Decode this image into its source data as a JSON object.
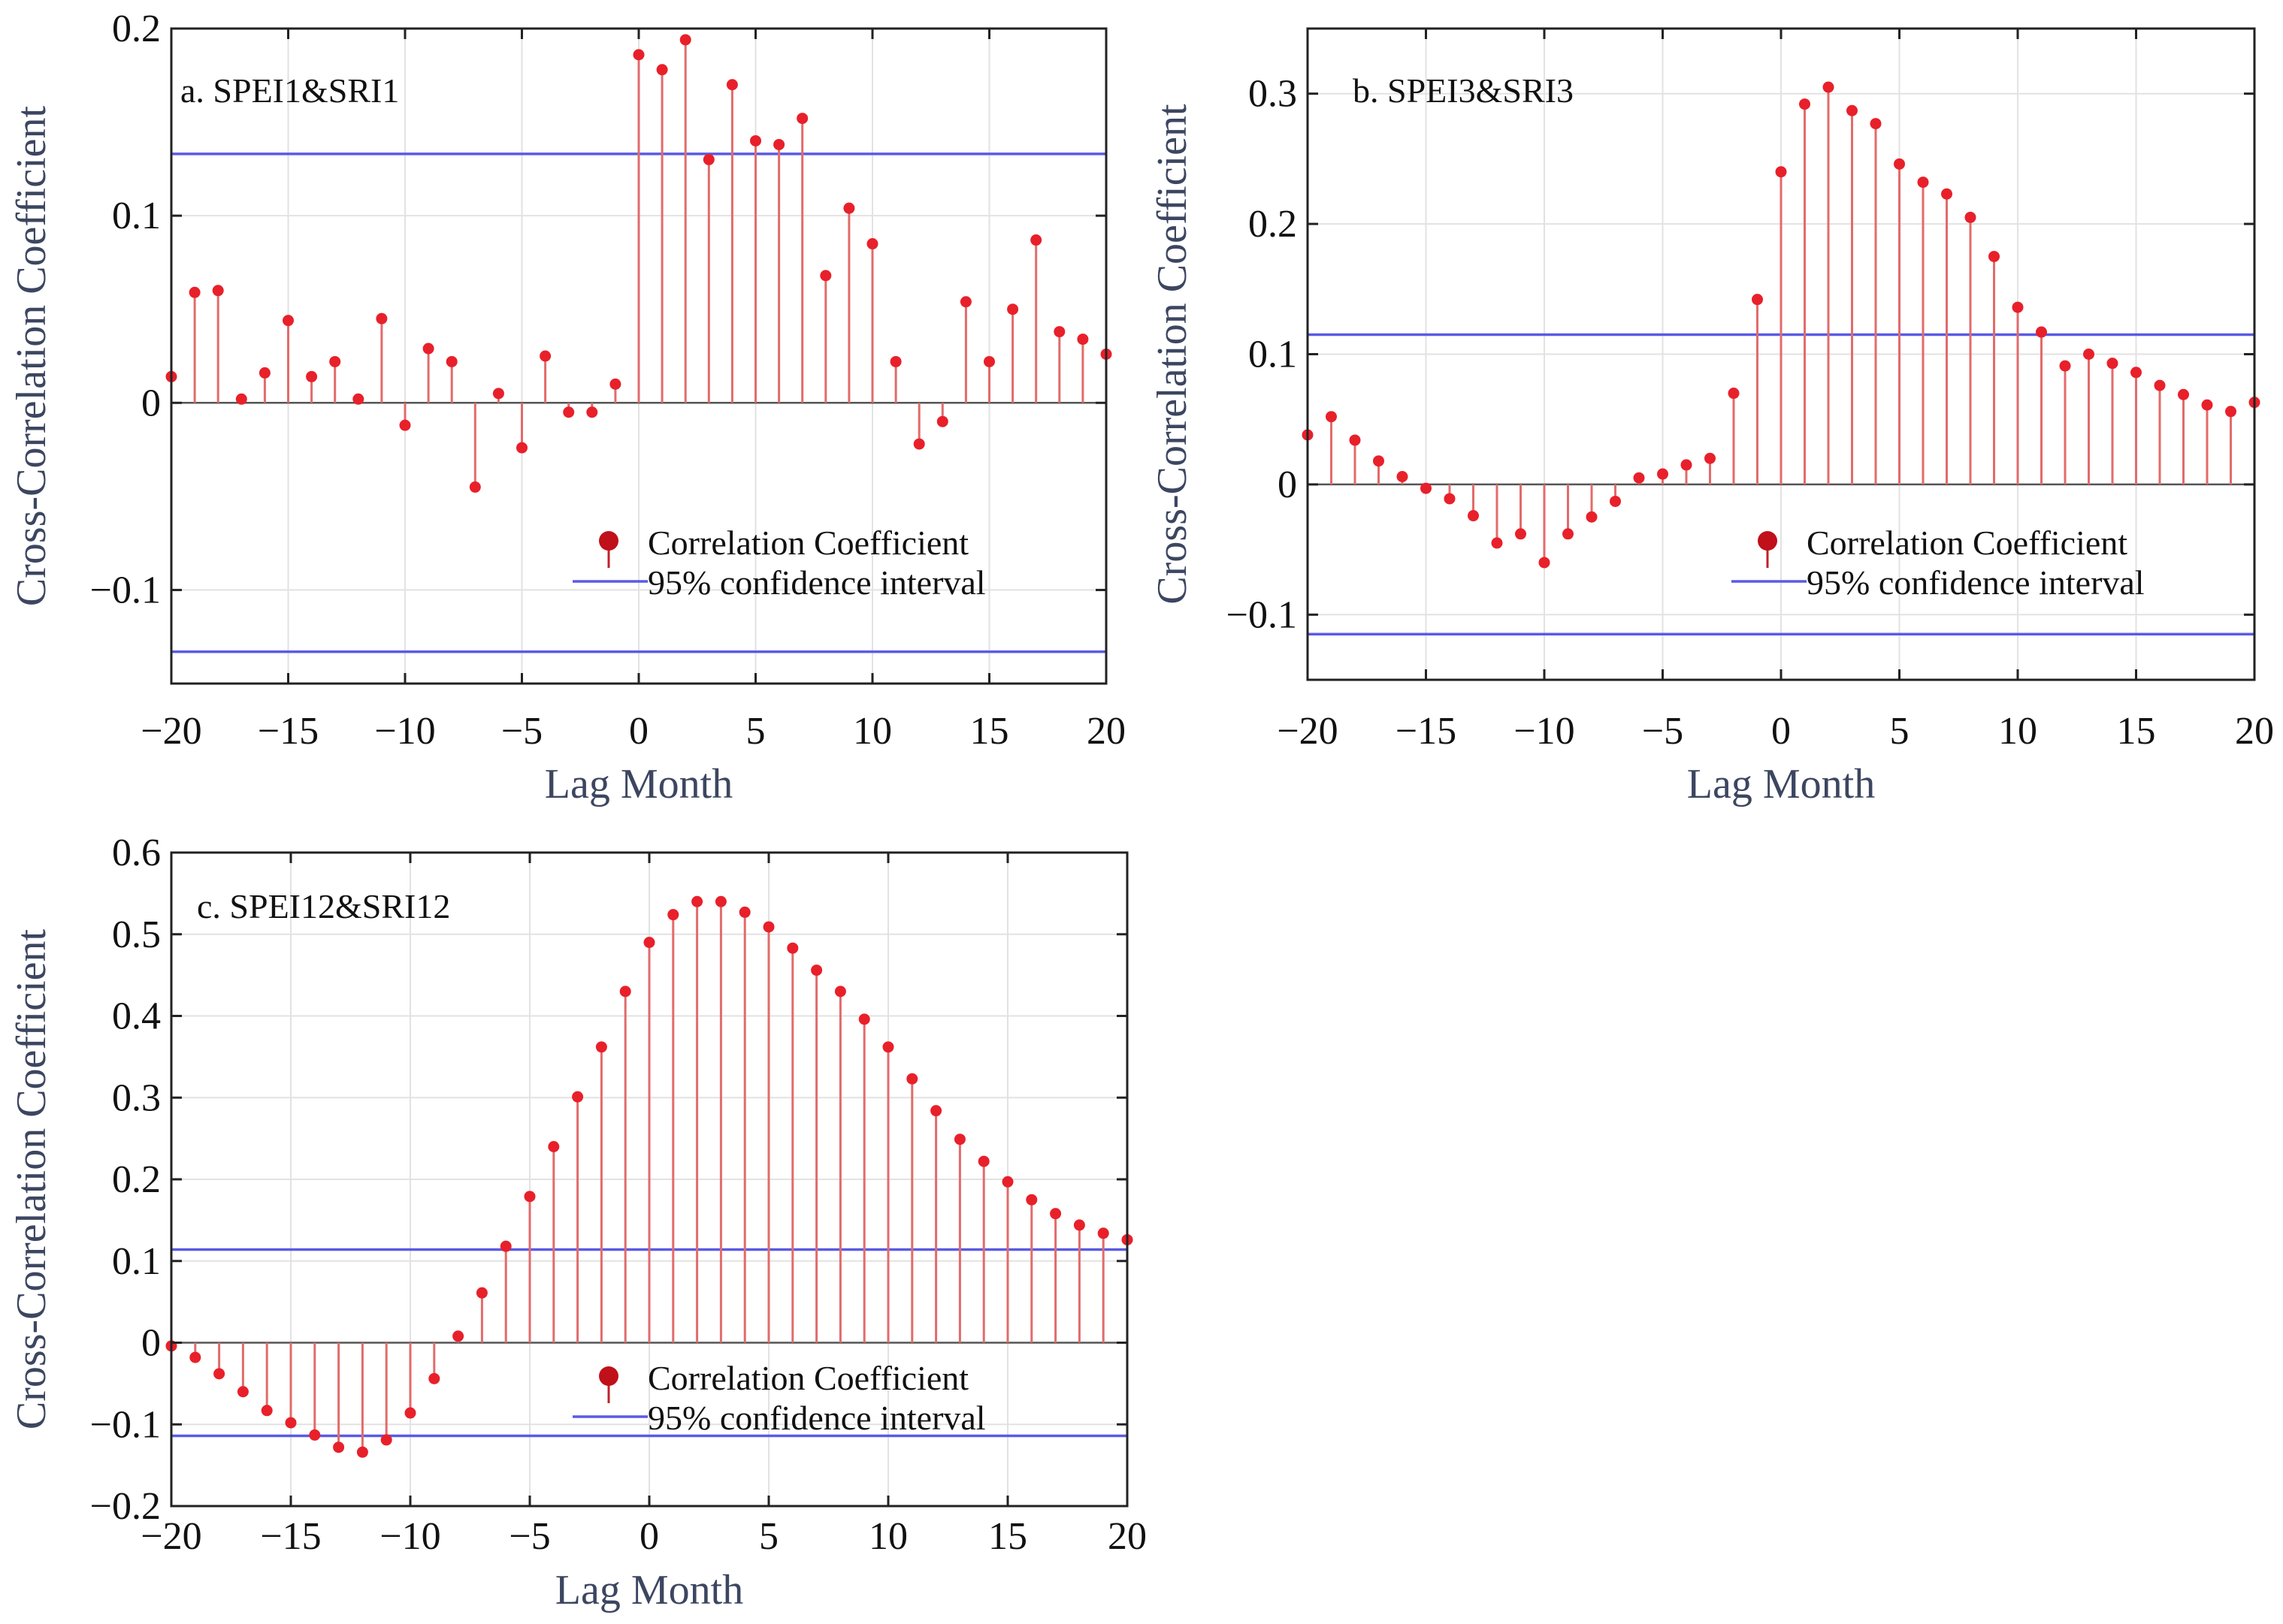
{
  "colors": {
    "stem": "#e26b6b",
    "marker": "#e8202a",
    "confidence": "#5a5ae6",
    "zero_line": "#555555",
    "axis": "#222222",
    "label": "#3c4660",
    "grid": "#e2e2e2"
  },
  "legend": {
    "marker_label": "Correlation Coefficient",
    "line_label": "95% confidence interval"
  },
  "chart_data": [
    {
      "id": "a",
      "type": "stem",
      "title": "a. SPEI1&SRI1",
      "xlabel": "Lag Month",
      "ylabel": "Cross-Correlation Coefficient",
      "xlim": [
        -20,
        20
      ],
      "ylim": [
        -0.15,
        0.2
      ],
      "xticks": [
        -20,
        -15,
        -10,
        -5,
        0,
        5,
        10,
        15,
        20
      ],
      "xtick_labels": [
        "−20",
        "−15",
        "−10",
        "−5",
        "0",
        "5",
        "10",
        "15",
        "20"
      ],
      "yticks": [
        -0.1,
        0,
        0.1,
        0.2
      ],
      "ytick_labels": [
        "−0.1",
        "0",
        "0.1",
        "0.2"
      ],
      "confidence_interval": [
        0.133,
        -0.133
      ],
      "x": [
        -20,
        -19,
        -18,
        -17,
        -16,
        -15,
        -14,
        -13,
        -12,
        -11,
        -10,
        -9,
        -8,
        -7,
        -6,
        -5,
        -4,
        -3,
        -2,
        -1,
        0,
        1,
        2,
        3,
        4,
        5,
        6,
        7,
        8,
        9,
        10,
        11,
        12,
        13,
        14,
        15,
        16,
        17,
        18,
        19,
        20
      ],
      "values": [
        0.014,
        0.059,
        0.06,
        0.002,
        0.016,
        0.044,
        0.014,
        0.022,
        0.002,
        0.045,
        -0.012,
        0.029,
        0.022,
        -0.045,
        0.005,
        -0.024,
        0.025,
        -0.005,
        -0.005,
        0.01,
        0.186,
        0.178,
        0.194,
        0.13,
        0.17,
        0.14,
        0.138,
        0.152,
        0.068,
        0.104,
        0.085,
        0.022,
        -0.022,
        -0.01,
        0.054,
        0.022,
        0.05,
        0.087,
        0.038,
        0.034,
        0.026
      ]
    },
    {
      "id": "b",
      "type": "stem",
      "title": "b. SPEI3&SRI3",
      "xlabel": "Lag Month",
      "ylabel": "Cross-Correlation Coefficient",
      "xlim": [
        -20,
        20
      ],
      "ylim": [
        -0.15,
        0.35
      ],
      "xticks": [
        -20,
        -15,
        -10,
        -5,
        0,
        5,
        10,
        15,
        20
      ],
      "xtick_labels": [
        "−20",
        "−15",
        "−10",
        "−5",
        "0",
        "5",
        "10",
        "15",
        "20"
      ],
      "yticks": [
        -0.1,
        0,
        0.1,
        0.2,
        0.3
      ],
      "ytick_labels": [
        "−0.1",
        "0",
        "0.1",
        "0.2",
        "0.3"
      ],
      "confidence_interval": [
        0.115,
        -0.115
      ],
      "x": [
        -20,
        -19,
        -18,
        -17,
        -16,
        -15,
        -14,
        -13,
        -12,
        -11,
        -10,
        -9,
        -8,
        -7,
        -6,
        -5,
        -4,
        -3,
        -2,
        -1,
        0,
        1,
        2,
        3,
        4,
        5,
        6,
        7,
        8,
        9,
        10,
        11,
        12,
        13,
        14,
        15,
        16,
        17,
        18,
        19,
        20
      ],
      "values": [
        0.038,
        0.052,
        0.034,
        0.018,
        0.006,
        -0.003,
        -0.011,
        -0.024,
        -0.045,
        -0.038,
        -0.06,
        -0.038,
        -0.025,
        -0.013,
        0.005,
        0.008,
        0.015,
        0.02,
        0.07,
        0.142,
        0.24,
        0.292,
        0.305,
        0.287,
        0.277,
        0.246,
        0.232,
        0.223,
        0.205,
        0.175,
        0.136,
        0.117,
        0.091,
        0.1,
        0.093,
        0.086,
        0.076,
        0.069,
        0.061,
        0.056,
        0.063
      ]
    },
    {
      "id": "c",
      "type": "stem",
      "title": "c. SPEI12&SRI12",
      "xlabel": "Lag Month",
      "ylabel": "Cross-Correlation Coefficient",
      "xlim": [
        -20,
        20
      ],
      "ylim": [
        -0.2,
        0.6
      ],
      "xticks": [
        -20,
        -15,
        -10,
        -5,
        0,
        5,
        10,
        15,
        20
      ],
      "xtick_labels": [
        "−20",
        "−15",
        "−10",
        "−5",
        "0",
        "5",
        "10",
        "15",
        "20"
      ],
      "yticks": [
        -0.2,
        -0.1,
        0,
        0.1,
        0.2,
        0.3,
        0.4,
        0.5,
        0.6
      ],
      "ytick_labels": [
        "−0.2",
        "−0.1",
        "0",
        "0.1",
        "0.2",
        "0.3",
        "0.4",
        "0.5",
        "0.6"
      ],
      "confidence_interval": [
        0.114,
        -0.114
      ],
      "x": [
        -20,
        -19,
        -18,
        -17,
        -16,
        -15,
        -14,
        -13,
        -12,
        -11,
        -10,
        -9,
        -8,
        -7,
        -6,
        -5,
        -4,
        -3,
        -2,
        -1,
        0,
        1,
        2,
        3,
        4,
        5,
        6,
        7,
        8,
        9,
        10,
        11,
        12,
        13,
        14,
        15,
        16,
        17,
        18,
        19,
        20
      ],
      "values": [
        -0.004,
        -0.018,
        -0.038,
        -0.06,
        -0.083,
        -0.098,
        -0.113,
        -0.128,
        -0.134,
        -0.119,
        -0.086,
        -0.044,
        0.008,
        0.061,
        0.118,
        0.179,
        0.24,
        0.301,
        0.362,
        0.43,
        0.49,
        0.524,
        0.54,
        0.54,
        0.527,
        0.509,
        0.483,
        0.456,
        0.43,
        0.396,
        0.362,
        0.323,
        0.284,
        0.249,
        0.222,
        0.197,
        0.175,
        0.158,
        0.144,
        0.134,
        0.126
      ]
    }
  ]
}
